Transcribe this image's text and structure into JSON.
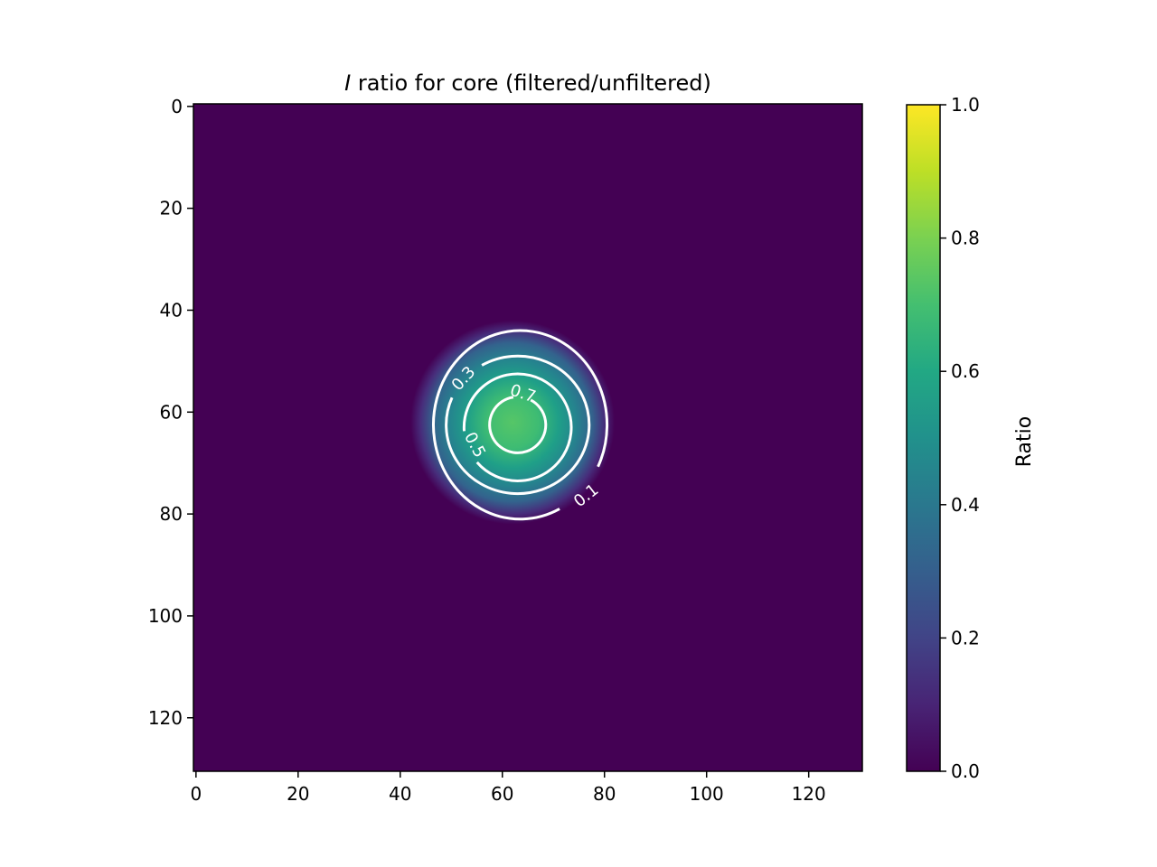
{
  "chart_data": {
    "type": "heatmap",
    "title": {
      "italic_symbol": "I",
      "rest": " ratio for core (filtered/unfiltered)"
    },
    "grid": false,
    "xlim": [
      -0.5,
      130.5
    ],
    "ylim": [
      130.5,
      -0.5
    ],
    "y_axis_inverted": true,
    "xticks": [
      0,
      20,
      40,
      60,
      80,
      100,
      120
    ],
    "yticks": [
      0,
      20,
      40,
      60,
      80,
      100,
      120
    ],
    "x_tick_labels": [
      "0",
      "20",
      "40",
      "60",
      "80",
      "100",
      "120"
    ],
    "y_tick_labels": [
      "0",
      "20",
      "40",
      "60",
      "80",
      "100",
      "120"
    ],
    "colormap": "viridis",
    "background_value": 0.0,
    "peak": {
      "x": 62,
      "y": 62,
      "value": 0.82
    },
    "colorbar": {
      "label": "Ratio",
      "range": [
        0.0,
        1.0
      ],
      "ticks": [
        0.0,
        0.2,
        0.4,
        0.6,
        0.8,
        1.0
      ],
      "tick_labels": [
        "0.0",
        "0.2",
        "0.4",
        "0.6",
        "0.8",
        "1.0"
      ]
    },
    "contours": [
      {
        "level": 0.1,
        "label": "0.1",
        "center": [
          63.5,
          62.5
        ],
        "radius_x": 17,
        "radius_y": 18.5,
        "label_at": {
          "x": 76.5,
          "y": 76.5,
          "angle": -38
        }
      },
      {
        "level": 0.3,
        "label": "0.3",
        "center": [
          63,
          62.5
        ],
        "radius_x": 14,
        "radius_y": 13.5,
        "label_at": {
          "x": 52.5,
          "y": 53.5,
          "angle": -48
        }
      },
      {
        "level": 0.5,
        "label": "0.5",
        "center": [
          63,
          63
        ],
        "radius_x": 10.5,
        "radius_y": 10.5,
        "label_at": {
          "x": 54.5,
          "y": 66.5,
          "angle": 62
        }
      },
      {
        "level": 0.7,
        "label": "0.7",
        "center": [
          63,
          62.5
        ],
        "radius_x": 5.5,
        "radius_y": 5.5,
        "label_at": {
          "x": 64,
          "y": 56.5,
          "angle": 18
        }
      }
    ],
    "colors": {
      "contour": "#ffffff",
      "axes": "#000000"
    }
  }
}
